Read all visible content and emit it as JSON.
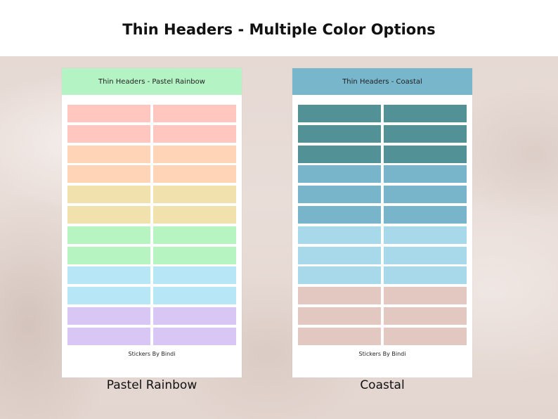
{
  "title": "Thin Headers - Multiple Color Options",
  "sheets": [
    {
      "header": "Thin Headers - Pastel Rainbow",
      "header_color": "#b4f4c4",
      "footer": "Stickers By Bindi",
      "caption": "Pastel Rainbow",
      "row_colors": [
        "#ffc7c0",
        "#ffc7c0",
        "#ffd4b7",
        "#ffd4b7",
        "#f1e2ad",
        "#f1e2ad",
        "#b6f5c2",
        "#b6f5c2",
        "#b7e6f6",
        "#b7e6f6",
        "#d8c6f4",
        "#d8c6f4"
      ]
    },
    {
      "header": "Thin Headers - Coastal",
      "header_color": "#78b6cb",
      "footer": "Stickers By Bindi",
      "caption": "Coastal",
      "row_colors": [
        "#529195",
        "#529195",
        "#529195",
        "#79b5ca",
        "#79b5ca",
        "#79b5ca",
        "#a8d9ea",
        "#a8d9ea",
        "#a8d9ea",
        "#e3c7c1",
        "#e3c7c1",
        "#e3c7c1"
      ]
    }
  ]
}
